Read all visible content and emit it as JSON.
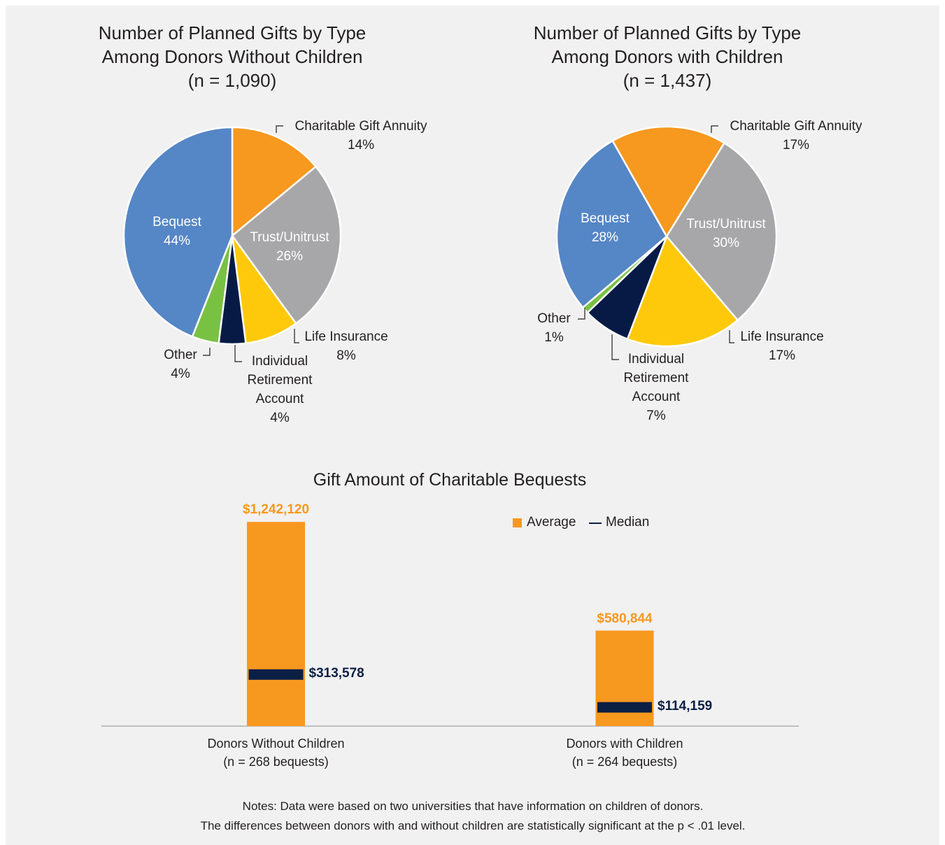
{
  "chart_data": [
    {
      "type": "pie",
      "title": "Number of Planned Gifts by Type\nAmong Donors Without Children",
      "subtitle": "(n = 1,090)",
      "categories": [
        "Charitable Gift Annuity",
        "Trust/Unitrust",
        "Life Insurance",
        "Individual\nRetirement\nAccount",
        "Other",
        "Bequest"
      ],
      "values": [
        14,
        26,
        8,
        4,
        4,
        44
      ],
      "value_labels": [
        "14%",
        "26%",
        "8%",
        "4%",
        "4%",
        "44%"
      ],
      "colors": [
        "#f7981f",
        "#a7a7a9",
        "#ffc90b",
        "#061a45",
        "#79c143",
        "#5586c6"
      ]
    },
    {
      "type": "pie",
      "title": "Number of Planned Gifts by Type\nAmong Donors with Children",
      "subtitle": "(n = 1,437)",
      "categories": [
        "Charitable Gift Annuity",
        "Trust/Unitrust",
        "Life Insurance",
        "Individual\nRetirement\nAccount",
        "Other",
        "Bequest"
      ],
      "values": [
        17,
        30,
        17,
        7,
        1,
        28
      ],
      "value_labels": [
        "17%",
        "30%",
        "17%",
        "7%",
        "1%",
        "28%"
      ],
      "colors": [
        "#f7981f",
        "#a7a7a9",
        "#ffc90b",
        "#061a45",
        "#79c143",
        "#5586c6"
      ]
    },
    {
      "type": "bar",
      "title": "Gift Amount of Charitable Bequests",
      "categories": [
        "Donors Without Children\n(n = 268 bequests)",
        "Donors with Children\n(n = 264 bequests)"
      ],
      "ylim": [
        0,
        1400000
      ],
      "series": [
        {
          "name": "Average",
          "type": "bar",
          "color": "#f7981f",
          "values": [
            1242120,
            580844
          ],
          "value_labels": [
            "$1,242,120",
            "$580,844"
          ]
        },
        {
          "name": "Median",
          "type": "line",
          "color": "#0b1f45",
          "values": [
            313578,
            114159
          ],
          "value_labels": [
            "$313,578",
            "$114,159"
          ]
        }
      ],
      "notes": [
        "Notes: Data were based on two universities that have information on children of donors.",
        "The differences between donors with and without children are statistically significant at the p < .01 level."
      ]
    }
  ]
}
